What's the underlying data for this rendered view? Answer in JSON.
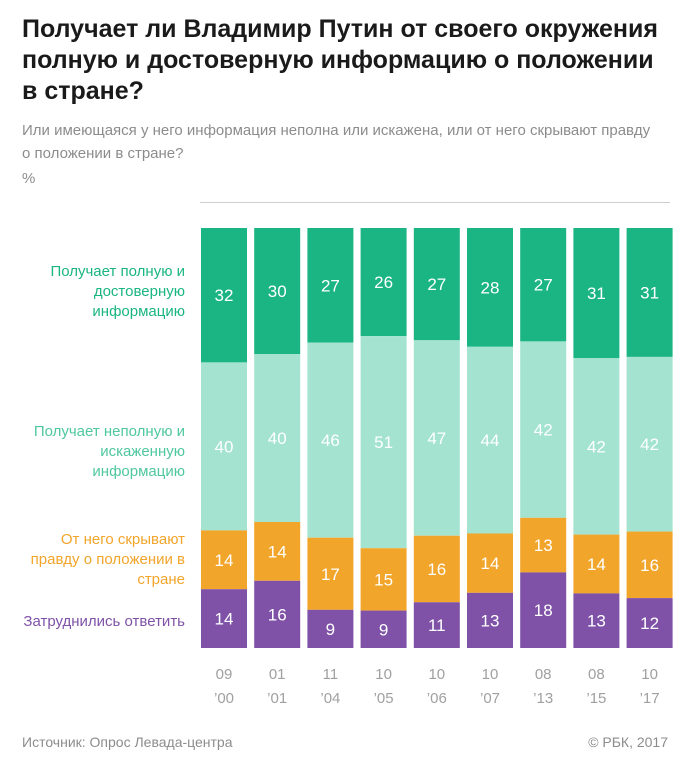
{
  "header": {
    "title": "Получает ли Владимир Путин от своего окружения полную и достоверную информацию о положении в стране?",
    "subtitle": "Или имеющаяся у него информация неполна или искажена, или от него скрывают правду о положении в стране?",
    "unit": "%"
  },
  "legend": [
    {
      "label": "Получает полную и достоверную информацию",
      "color": "#1ab582"
    },
    {
      "label": "Получает неполную и искаженную информацию",
      "color": "#a3e3cf"
    },
    {
      "label": "От него скрывают правду о положении в стране",
      "color": "#f2a52b"
    },
    {
      "label": "Затруднились ответить",
      "color": "#7f52a8"
    }
  ],
  "footer": {
    "source": "Источник: Опрос Левада-центра",
    "copyright": "© РБК, 2017"
  },
  "chart_data": {
    "type": "bar",
    "stacked": true,
    "categories": [
      "09 ’00",
      "01 ’01",
      "11 ’04",
      "10 ’05",
      "10 ’06",
      "10 ’07",
      "08 ’13",
      "08 ’15",
      "10 ’17"
    ],
    "series": [
      {
        "name": "Получает полную и достоверную информацию",
        "values": [
          32,
          30,
          27,
          26,
          27,
          28,
          27,
          31,
          31
        ],
        "color": "#1ab582",
        "label_color": "#ffffff"
      },
      {
        "name": "Получает неполную и искаженную информацию",
        "values": [
          40,
          40,
          46,
          51,
          47,
          44,
          42,
          42,
          42
        ],
        "color": "#a3e3cf",
        "label_color": "#ffffff"
      },
      {
        "name": "От него скрывают правду о положении в стране",
        "values": [
          14,
          14,
          17,
          15,
          16,
          14,
          13,
          14,
          16
        ],
        "color": "#f2a52b",
        "label_color": "#ffffff"
      },
      {
        "name": "Затруднились ответить",
        "values": [
          14,
          16,
          9,
          9,
          11,
          13,
          18,
          13,
          12
        ],
        "color": "#7f52a8",
        "label_color": "#ffffff"
      }
    ],
    "ylim": [
      0,
      100
    ]
  }
}
